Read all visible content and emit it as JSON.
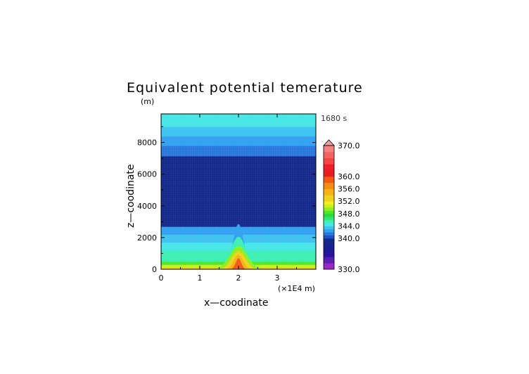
{
  "chart_data": {
    "type": "heatmap",
    "title": "Equivalent potential temerature",
    "y_unit": "(m)",
    "time_label": "1680 s",
    "xlabel": "x—coodinate",
    "ylabel": "z—coodinate",
    "x_unit_label": "(×1E4 m)",
    "xlim": [
      0,
      4.0
    ],
    "ylim": [
      0,
      9800
    ],
    "x_ticks": [
      "0",
      "1",
      "2",
      "3"
    ],
    "x_tick_values": [
      0,
      1,
      2,
      3
    ],
    "y_ticks": [
      "0",
      "2000",
      "4000",
      "6000",
      "8000"
    ],
    "y_tick_values": [
      0,
      2000,
      4000,
      6000,
      8000
    ],
    "layer_bounds_m": [
      0,
      150,
      300,
      500,
      1200,
      1700,
      2200,
      2700,
      7150,
      7800,
      8400,
      9000,
      9800
    ],
    "layer_values": [
      352.0,
      350.0,
      348.0,
      345.0,
      344.0,
      343.0,
      342.0,
      339.0,
      341.0,
      342.0,
      343.0,
      344.0
    ],
    "bump": {
      "center_x": 2.0,
      "contours": [
        {
          "value": 358.0,
          "peak_height": 700,
          "half_width": 0.1
        },
        {
          "value": 355.0,
          "peak_height": 900,
          "half_width": 0.17
        },
        {
          "value": 352.0,
          "peak_height": 1150,
          "half_width": 0.25
        },
        {
          "value": 349.0,
          "peak_height": 1450,
          "half_width": 0.32
        },
        {
          "value": 345.0,
          "peak_height": 2050,
          "half_width": 0.28
        },
        {
          "value": 342.0,
          "peak_height": 2850,
          "half_width": 0.2
        }
      ]
    },
    "colorbar": {
      "tick_labels": [
        "330.0",
        "340.0",
        "344.0",
        "348.0",
        "352.0",
        "356.0",
        "360.0",
        "370.0"
      ],
      "tick_values": [
        330,
        340,
        344,
        348,
        352,
        356,
        360,
        370
      ],
      "range": [
        330,
        370
      ],
      "colors": [
        {
          "from": 330,
          "to": 332,
          "color": "#9b28c8"
        },
        {
          "from": 332,
          "to": 334,
          "color": "#5a1eb4"
        },
        {
          "from": 334,
          "to": 336,
          "color": "#2a14a0"
        },
        {
          "from": 336,
          "to": 338,
          "color": "#1a1e96"
        },
        {
          "from": 338,
          "to": 340,
          "color": "#14288c"
        },
        {
          "from": 340,
          "to": 341,
          "color": "#1e50c8"
        },
        {
          "from": 341,
          "to": 342,
          "color": "#2878dc"
        },
        {
          "from": 342,
          "to": 343,
          "color": "#32a0f0"
        },
        {
          "from": 343,
          "to": 344,
          "color": "#3cc3f0"
        },
        {
          "from": 344,
          "to": 345,
          "color": "#46e6e6"
        },
        {
          "from": 345,
          "to": 346,
          "color": "#3cf0b4"
        },
        {
          "from": 346,
          "to": 347,
          "color": "#32e678"
        },
        {
          "from": 347,
          "to": 348,
          "color": "#28dc3c"
        },
        {
          "from": 348,
          "to": 349,
          "color": "#50e628"
        },
        {
          "from": 349,
          "to": 350,
          "color": "#8cf01e"
        },
        {
          "from": 350,
          "to": 351,
          "color": "#c8f01e"
        },
        {
          "from": 351,
          "to": 352,
          "color": "#f0f01e"
        },
        {
          "from": 352,
          "to": 354,
          "color": "#f0d21e"
        },
        {
          "from": 354,
          "to": 356,
          "color": "#f5b414"
        },
        {
          "from": 356,
          "to": 358,
          "color": "#f58c14"
        },
        {
          "from": 358,
          "to": 360,
          "color": "#f05a14"
        },
        {
          "from": 360,
          "to": 362,
          "color": "#e61e1e"
        },
        {
          "from": 362,
          "to": 364,
          "color": "#f01e28"
        },
        {
          "from": 364,
          "to": 366,
          "color": "#f54646"
        },
        {
          "from": 366,
          "to": 368,
          "color": "#f56464"
        },
        {
          "from": 368,
          "to": 370,
          "color": "#f58282"
        }
      ],
      "overflow_color": "#f5a0a0"
    }
  }
}
